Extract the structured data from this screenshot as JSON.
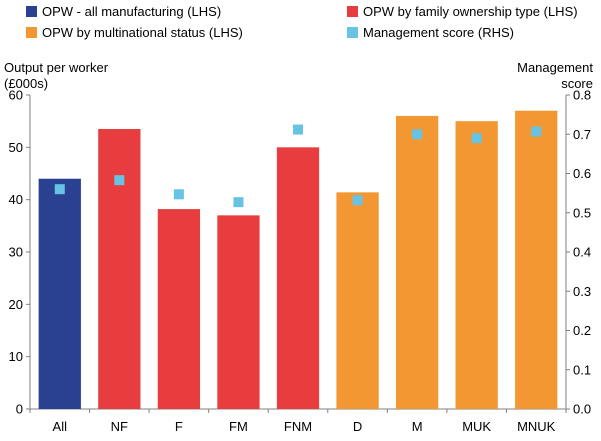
{
  "chart_data": {
    "type": "bar",
    "categories": [
      "All",
      "NF",
      "F",
      "FM",
      "FNM",
      "D",
      "M",
      "MUK",
      "MNUK"
    ],
    "series": [
      {
        "name": "OPW - all manufacturing (LHS)",
        "axis": "left",
        "color": "#2a4192",
        "values": [
          44,
          null,
          null,
          null,
          null,
          null,
          null,
          null,
          null
        ]
      },
      {
        "name": "OPW by family ownership type (LHS)",
        "axis": "left",
        "color": "#e83d3f",
        "values": [
          null,
          53.5,
          38.2,
          37,
          50,
          null,
          null,
          null,
          null
        ]
      },
      {
        "name": "OPW by multinational status (LHS)",
        "axis": "left",
        "color": "#f39732",
        "values": [
          null,
          null,
          null,
          null,
          null,
          41.4,
          56,
          55,
          57
        ]
      },
      {
        "name": "Management score (RHS)",
        "axis": "right",
        "marker": "square",
        "color": "#66c3e3",
        "values": [
          0.56,
          0.583,
          0.547,
          0.527,
          0.712,
          0.532,
          0.7,
          0.69,
          0.707
        ]
      }
    ],
    "ylabel": "Output per worker (£000s)",
    "ylabel_lines": [
      "Output per worker",
      "(£000s)"
    ],
    "y2label": "Management score",
    "y2label_lines": [
      "Management",
      "score"
    ],
    "ylim": [
      0,
      60
    ],
    "yticks": [
      "0",
      "10",
      "20",
      "30",
      "40",
      "50",
      "60"
    ],
    "y2lim": [
      0,
      0.8
    ],
    "y2ticks": [
      "0.0",
      "0.1",
      "0.2",
      "0.3",
      "0.4",
      "0.5",
      "0.6",
      "0.7",
      "0.8"
    ],
    "grid": false,
    "legend_position": "top"
  }
}
